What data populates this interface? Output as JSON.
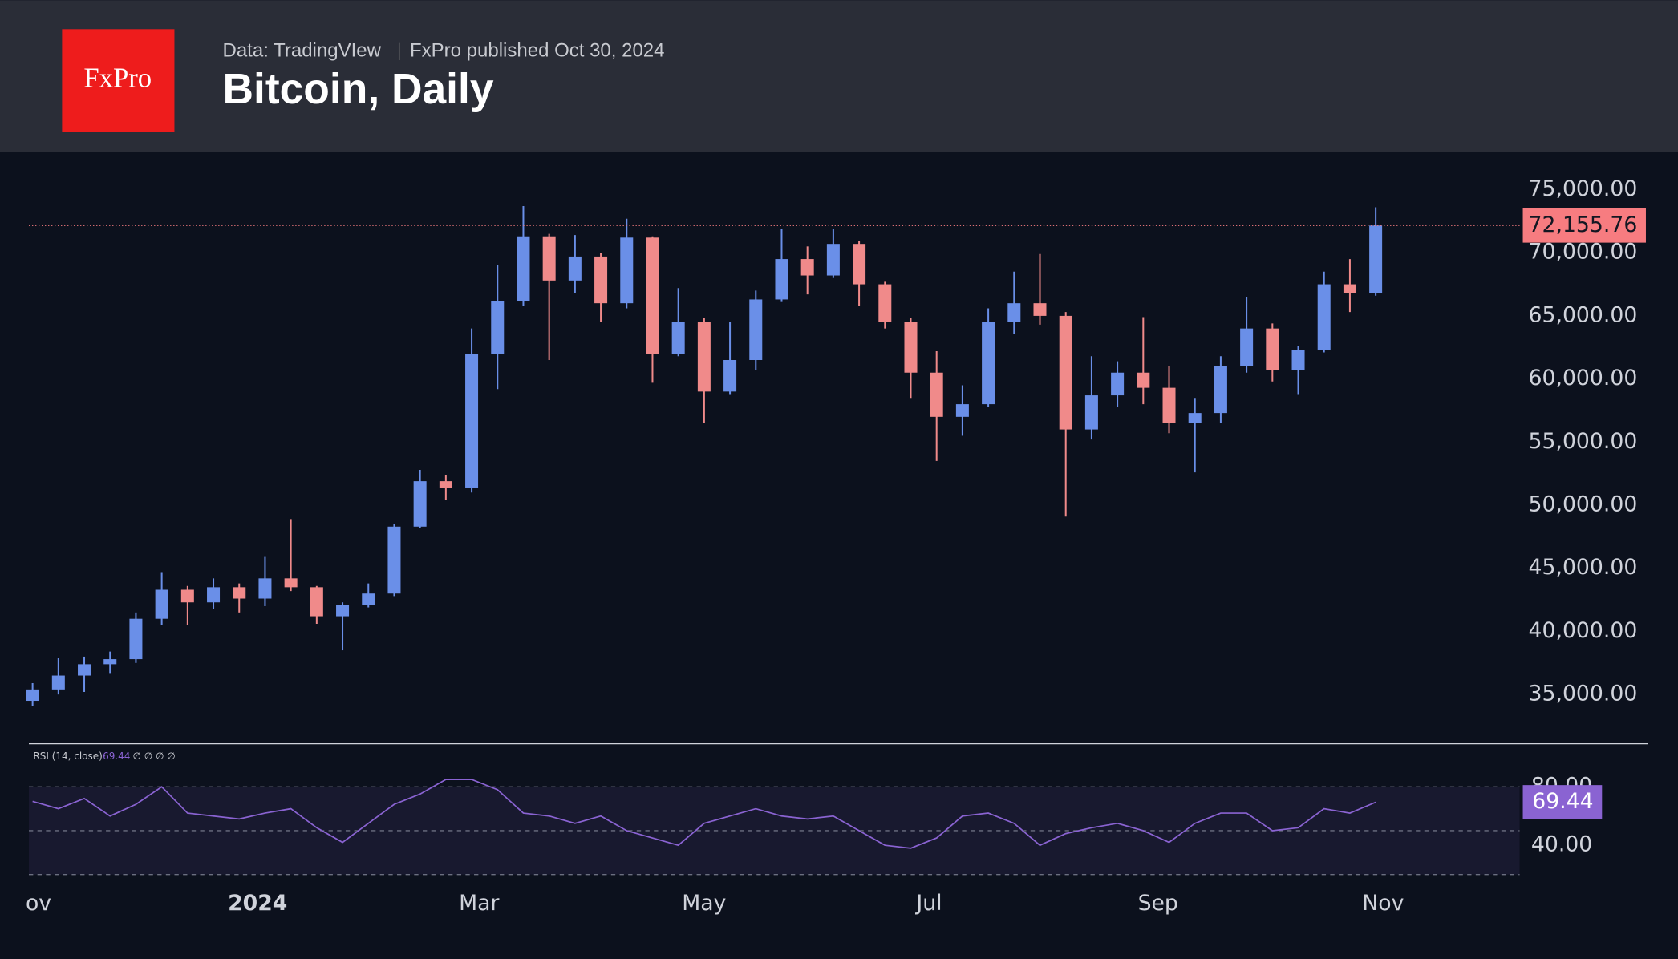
{
  "header": {
    "logo": "FxPro",
    "source": "Data: TradingVIew",
    "published": "FxPro published Oct 30, 2024",
    "title": "Bitcoin, Daily"
  },
  "chart_data": {
    "type": "candlestick",
    "up_color": "#6a8fe8",
    "down_color": "#f08a8a",
    "x": [
      "2023-11-01",
      "2023-11-08",
      "2023-11-15",
      "2023-11-22",
      "2023-11-29",
      "2023-12-06",
      "2023-12-13",
      "2023-12-20",
      "2023-12-27",
      "2024-01-03",
      "2024-01-10",
      "2024-01-17",
      "2024-01-24",
      "2024-01-31",
      "2024-02-07",
      "2024-02-14",
      "2024-02-21",
      "2024-02-28",
      "2024-03-06",
      "2024-03-13",
      "2024-03-20",
      "2024-03-27",
      "2024-04-03",
      "2024-04-10",
      "2024-04-17",
      "2024-04-24",
      "2024-05-01",
      "2024-05-08",
      "2024-05-15",
      "2024-05-22",
      "2024-05-29",
      "2024-06-05",
      "2024-06-12",
      "2024-06-19",
      "2024-06-26",
      "2024-07-03",
      "2024-07-10",
      "2024-07-17",
      "2024-07-24",
      "2024-07-31",
      "2024-08-07",
      "2024-08-14",
      "2024-08-21",
      "2024-08-28",
      "2024-09-04",
      "2024-09-11",
      "2024-09-18",
      "2024-09-25",
      "2024-10-02",
      "2024-10-09",
      "2024-10-16",
      "2024-10-23",
      "2024-10-30"
    ],
    "open": [
      34500,
      35400,
      36500,
      37400,
      37800,
      41000,
      43300,
      42300,
      43500,
      42600,
      44200,
      43500,
      41200,
      42100,
      43000,
      48300,
      51900,
      51400,
      62000,
      66200,
      71300,
      67800,
      69700,
      66000,
      71200,
      62000,
      64500,
      59000,
      61500,
      66300,
      69500,
      68200,
      70700,
      67500,
      64500,
      60500,
      57000,
      58000,
      64500,
      66000,
      65000,
      56000,
      58700,
      60500,
      59300,
      56500,
      57300,
      61000,
      64000,
      60700,
      62300,
      67500,
      66800
    ],
    "high": [
      35900,
      37900,
      38000,
      38400,
      41500,
      44700,
      43600,
      44200,
      43800,
      45900,
      48900,
      43600,
      42300,
      43800,
      48500,
      52800,
      52400,
      64000,
      69000,
      73700,
      71500,
      71400,
      70000,
      72700,
      71300,
      67200,
      64800,
      64500,
      67000,
      71900,
      70500,
      71900,
      70900,
      67700,
      64800,
      62200,
      59500,
      65600,
      68500,
      69900,
      65300,
      61800,
      61400,
      64900,
      61000,
      58500,
      61800,
      66500,
      64400,
      62600,
      68500,
      69500,
      73600
    ],
    "low": [
      34100,
      35000,
      35200,
      36700,
      37500,
      40500,
      40500,
      41800,
      41500,
      42000,
      43200,
      40600,
      38500,
      41900,
      42800,
      48200,
      50400,
      51000,
      59200,
      65800,
      61500,
      66800,
      64500,
      65600,
      59700,
      61800,
      56500,
      58800,
      60700,
      66100,
      66700,
      68000,
      65800,
      64000,
      58500,
      53500,
      55500,
      57800,
      63600,
      64300,
      49100,
      55200,
      57800,
      58000,
      55700,
      52600,
      56500,
      60500,
      59800,
      58800,
      62100,
      65300,
      66600
    ],
    "close": [
      35400,
      36500,
      37400,
      37800,
      41000,
      43300,
      42300,
      43500,
      42600,
      44200,
      43500,
      41200,
      42100,
      43000,
      48300,
      51900,
      51400,
      62000,
      66200,
      71300,
      67800,
      69700,
      66000,
      71200,
      62000,
      64500,
      59000,
      61500,
      66300,
      69500,
      68200,
      70700,
      67500,
      64500,
      60500,
      57000,
      58000,
      64500,
      66000,
      65000,
      56000,
      58700,
      60500,
      59300,
      56500,
      57300,
      61000,
      64000,
      60700,
      62300,
      67500,
      66800,
      72155.76
    ],
    "close_label": "72,155.76",
    "xlim": [
      "2023-10-31",
      "2024-12-08"
    ],
    "xticks": [
      {
        "value": "2023-11-01",
        "label": "ov"
      },
      {
        "value": "2024-01-01",
        "label": "2024"
      },
      {
        "value": "2024-03-01",
        "label": "Mar"
      },
      {
        "value": "2024-05-01",
        "label": "May"
      },
      {
        "value": "2024-07-01",
        "label": "Jul"
      },
      {
        "value": "2024-09-01",
        "label": "Sep"
      },
      {
        "value": "2024-11-01",
        "label": "Nov"
      }
    ],
    "ylim": [
      31100,
      77970
    ],
    "yticks": [
      {
        "value": 35000,
        "label": "35,000.00"
      },
      {
        "value": 40000,
        "label": "40,000.00"
      },
      {
        "value": 45000,
        "label": "45,000.00"
      },
      {
        "value": 50000,
        "label": "50,000.00"
      },
      {
        "value": 55000,
        "label": "55,000.00"
      },
      {
        "value": 60000,
        "label": "60,000.00"
      },
      {
        "value": 65000,
        "label": "65,000.00"
      },
      {
        "value": 70000,
        "label": "70,000.00"
      },
      {
        "value": 75000,
        "label": "75,000.00"
      }
    ],
    "rsi": {
      "name": "RSI (14, close)",
      "extra": "∅ ∅ ∅ ∅",
      "color": "#8a63d2",
      "values": [
        70,
        65,
        72,
        60,
        68,
        80,
        62,
        60,
        58,
        62,
        65,
        52,
        42,
        55,
        68,
        75,
        85,
        85,
        78,
        62,
        60,
        55,
        60,
        50,
        45,
        40,
        55,
        60,
        65,
        60,
        58,
        60,
        50,
        40,
        38,
        45,
        60,
        62,
        55,
        40,
        48,
        52,
        55,
        50,
        42,
        55,
        62,
        62,
        50,
        52,
        65,
        62,
        69.44
      ],
      "ylim": [
        18,
        97
      ],
      "yticks": [
        {
          "value": 80,
          "label": "80.00"
        },
        {
          "value": 40,
          "label": "40.00"
        }
      ],
      "levels": [
        80,
        50,
        20
      ]
    }
  }
}
